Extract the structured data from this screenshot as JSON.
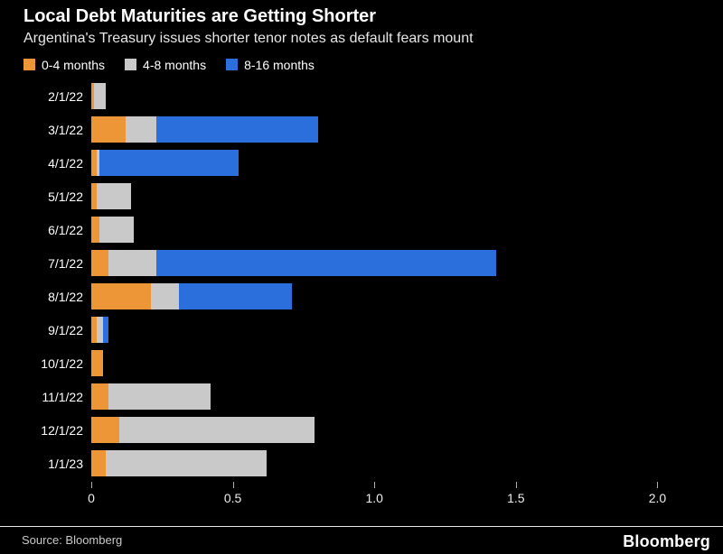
{
  "header": {
    "title": "Local Debt Maturities are Getting Shorter",
    "subtitle": "Argentina's Treasury issues shorter tenor notes as default fears mount"
  },
  "chart_data": {
    "type": "bar",
    "orientation": "horizontal",
    "stacked": true,
    "title": "Local Debt Maturities are Getting Shorter",
    "subtitle": "Argentina's Treasury issues shorter tenor notes as default fears mount",
    "categories": [
      "2/1/22",
      "3/1/22",
      "4/1/22",
      "5/1/22",
      "6/1/22",
      "7/1/22",
      "8/1/22",
      "9/1/22",
      "10/1/22",
      "11/1/22",
      "12/1/22",
      "1/1/23"
    ],
    "series": [
      {
        "name": "0-4 months",
        "color": "#EC9638",
        "values": [
          0.01,
          0.12,
          0.02,
          0.02,
          0.03,
          0.06,
          0.21,
          0.02,
          0.04,
          0.06,
          0.1,
          0.05
        ]
      },
      {
        "name": "4-8 months",
        "color": "#C9C9C9",
        "values": [
          0.04,
          0.11,
          0.01,
          0.12,
          0.12,
          0.17,
          0.1,
          0.02,
          0.0,
          0.36,
          0.69,
          0.57
        ]
      },
      {
        "name": "8-16 months",
        "color": "#2A6FDB",
        "values": [
          0.0,
          0.57,
          0.49,
          0.0,
          0.0,
          1.2,
          0.4,
          0.02,
          0.0,
          0.0,
          0.0,
          0.0
        ]
      }
    ],
    "xlim": [
      0,
      2.04
    ],
    "axis_max": 2.04,
    "x_ticks": [
      0,
      0.5,
      1.0,
      1.5,
      2.0
    ],
    "x_tick_labels": [
      "0",
      "0.5",
      "1.0",
      "1.5",
      "2.0"
    ],
    "legend_position": "top",
    "grid": false
  },
  "footer": {
    "source": "Source: Bloomberg",
    "brand": "Bloomberg"
  }
}
